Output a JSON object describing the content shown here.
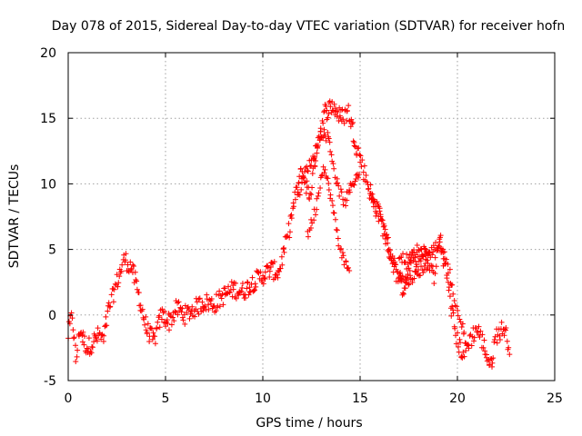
{
  "chart_data": {
    "type": "scatter",
    "title": "Day 078 of 2015, Sidereal Day-to-day VTEC variation (SDTVAR) for receiver hofn",
    "xlabel": "GPS time / hours",
    "ylabel": "SDTVAR / TECUs",
    "xlim": [
      0,
      25
    ],
    "ylim": [
      -5,
      20
    ],
    "xticks": [
      0,
      5,
      10,
      15,
      20,
      25
    ],
    "yticks": [
      -5,
      0,
      5,
      10,
      15,
      20
    ],
    "grid": true,
    "marker": "+",
    "color": "#ff0000",
    "series": [
      {
        "name": "SDTVAR",
        "trend": [
          [
            0.0,
            -1.5
          ],
          [
            0.2,
            0.0
          ],
          [
            0.4,
            -3.5
          ],
          [
            0.6,
            -1.0
          ],
          [
            0.8,
            -2.0
          ],
          [
            1.0,
            -2.5
          ],
          [
            1.3,
            -2.0
          ],
          [
            1.6,
            -1.5
          ],
          [
            1.8,
            -2.0
          ],
          [
            2.1,
            0.5
          ],
          [
            2.5,
            2.5
          ],
          [
            2.9,
            4.3
          ],
          [
            3.3,
            3.5
          ],
          [
            3.7,
            1.0
          ],
          [
            4.0,
            -1.0
          ],
          [
            4.4,
            -2.0
          ],
          [
            4.8,
            0.0
          ],
          [
            5.2,
            -0.5
          ],
          [
            5.6,
            0.5
          ],
          [
            6.0,
            0.0
          ],
          [
            6.5,
            0.5
          ],
          [
            7.0,
            1.0
          ],
          [
            7.5,
            0.8
          ],
          [
            8.0,
            1.5
          ],
          [
            8.5,
            2.0
          ],
          [
            9.0,
            1.8
          ],
          [
            9.5,
            2.5
          ],
          [
            10.0,
            3.0
          ],
          [
            10.4,
            3.5
          ],
          [
            10.8,
            3.2
          ],
          [
            11.2,
            5.5
          ],
          [
            11.6,
            8.5
          ],
          [
            12.0,
            11.0
          ],
          [
            12.4,
            9.0
          ],
          [
            12.8,
            13.0
          ],
          [
            13.2,
            15.5
          ],
          [
            13.6,
            16.0
          ],
          [
            14.0,
            15.0
          ],
          [
            14.4,
            15.5
          ],
          [
            14.8,
            13.0
          ],
          [
            15.2,
            11.0
          ],
          [
            15.6,
            9.0
          ],
          [
            16.0,
            7.5
          ],
          [
            16.4,
            5.5
          ],
          [
            16.8,
            3.5
          ],
          [
            17.2,
            2.0
          ],
          [
            17.6,
            4.0
          ],
          [
            18.0,
            3.8
          ],
          [
            18.4,
            5.0
          ],
          [
            18.8,
            3.0
          ],
          [
            19.1,
            6.0
          ],
          [
            19.4,
            3.5
          ],
          [
            19.7,
            0.5
          ],
          [
            20.0,
            -2.0
          ],
          [
            20.3,
            -3.0
          ],
          [
            20.6,
            -2.0
          ],
          [
            21.0,
            -1.0
          ],
          [
            21.4,
            -2.5
          ],
          [
            21.7,
            -4.0
          ],
          [
            22.0,
            -1.5
          ],
          [
            22.4,
            -1.0
          ],
          [
            22.7,
            -2.5
          ]
        ],
        "branches": [
          [
            [
              11.8,
              9.0
            ],
            [
              12.2,
              11.0
            ],
            [
              12.6,
              12.0
            ],
            [
              13.0,
              14.0
            ],
            [
              13.4,
              13.5
            ],
            [
              13.8,
              10.0
            ],
            [
              14.2,
              8.5
            ],
            [
              14.6,
              10.0
            ],
            [
              15.0,
              11.0
            ]
          ],
          [
            [
              12.3,
              6.0
            ],
            [
              12.7,
              8.0
            ],
            [
              13.1,
              11.5
            ],
            [
              13.5,
              9.0
            ],
            [
              13.9,
              5.5
            ],
            [
              14.2,
              4.0
            ],
            [
              14.5,
              3.5
            ]
          ],
          [
            [
              15.5,
              9.0
            ],
            [
              16.0,
              8.0
            ],
            [
              16.5,
              5.0
            ],
            [
              17.0,
              3.0
            ],
            [
              17.4,
              2.5
            ],
            [
              17.8,
              3.0
            ],
            [
              18.2,
              3.5
            ],
            [
              18.6,
              3.8
            ]
          ],
          [
            [
              17.0,
              4.5
            ],
            [
              17.5,
              4.2
            ],
            [
              18.0,
              5.0
            ],
            [
              18.5,
              4.5
            ],
            [
              19.0,
              5.5
            ],
            [
              19.5,
              4.0
            ],
            [
              20.0,
              0.0
            ],
            [
              20.4,
              -1.5
            ]
          ]
        ]
      }
    ]
  }
}
